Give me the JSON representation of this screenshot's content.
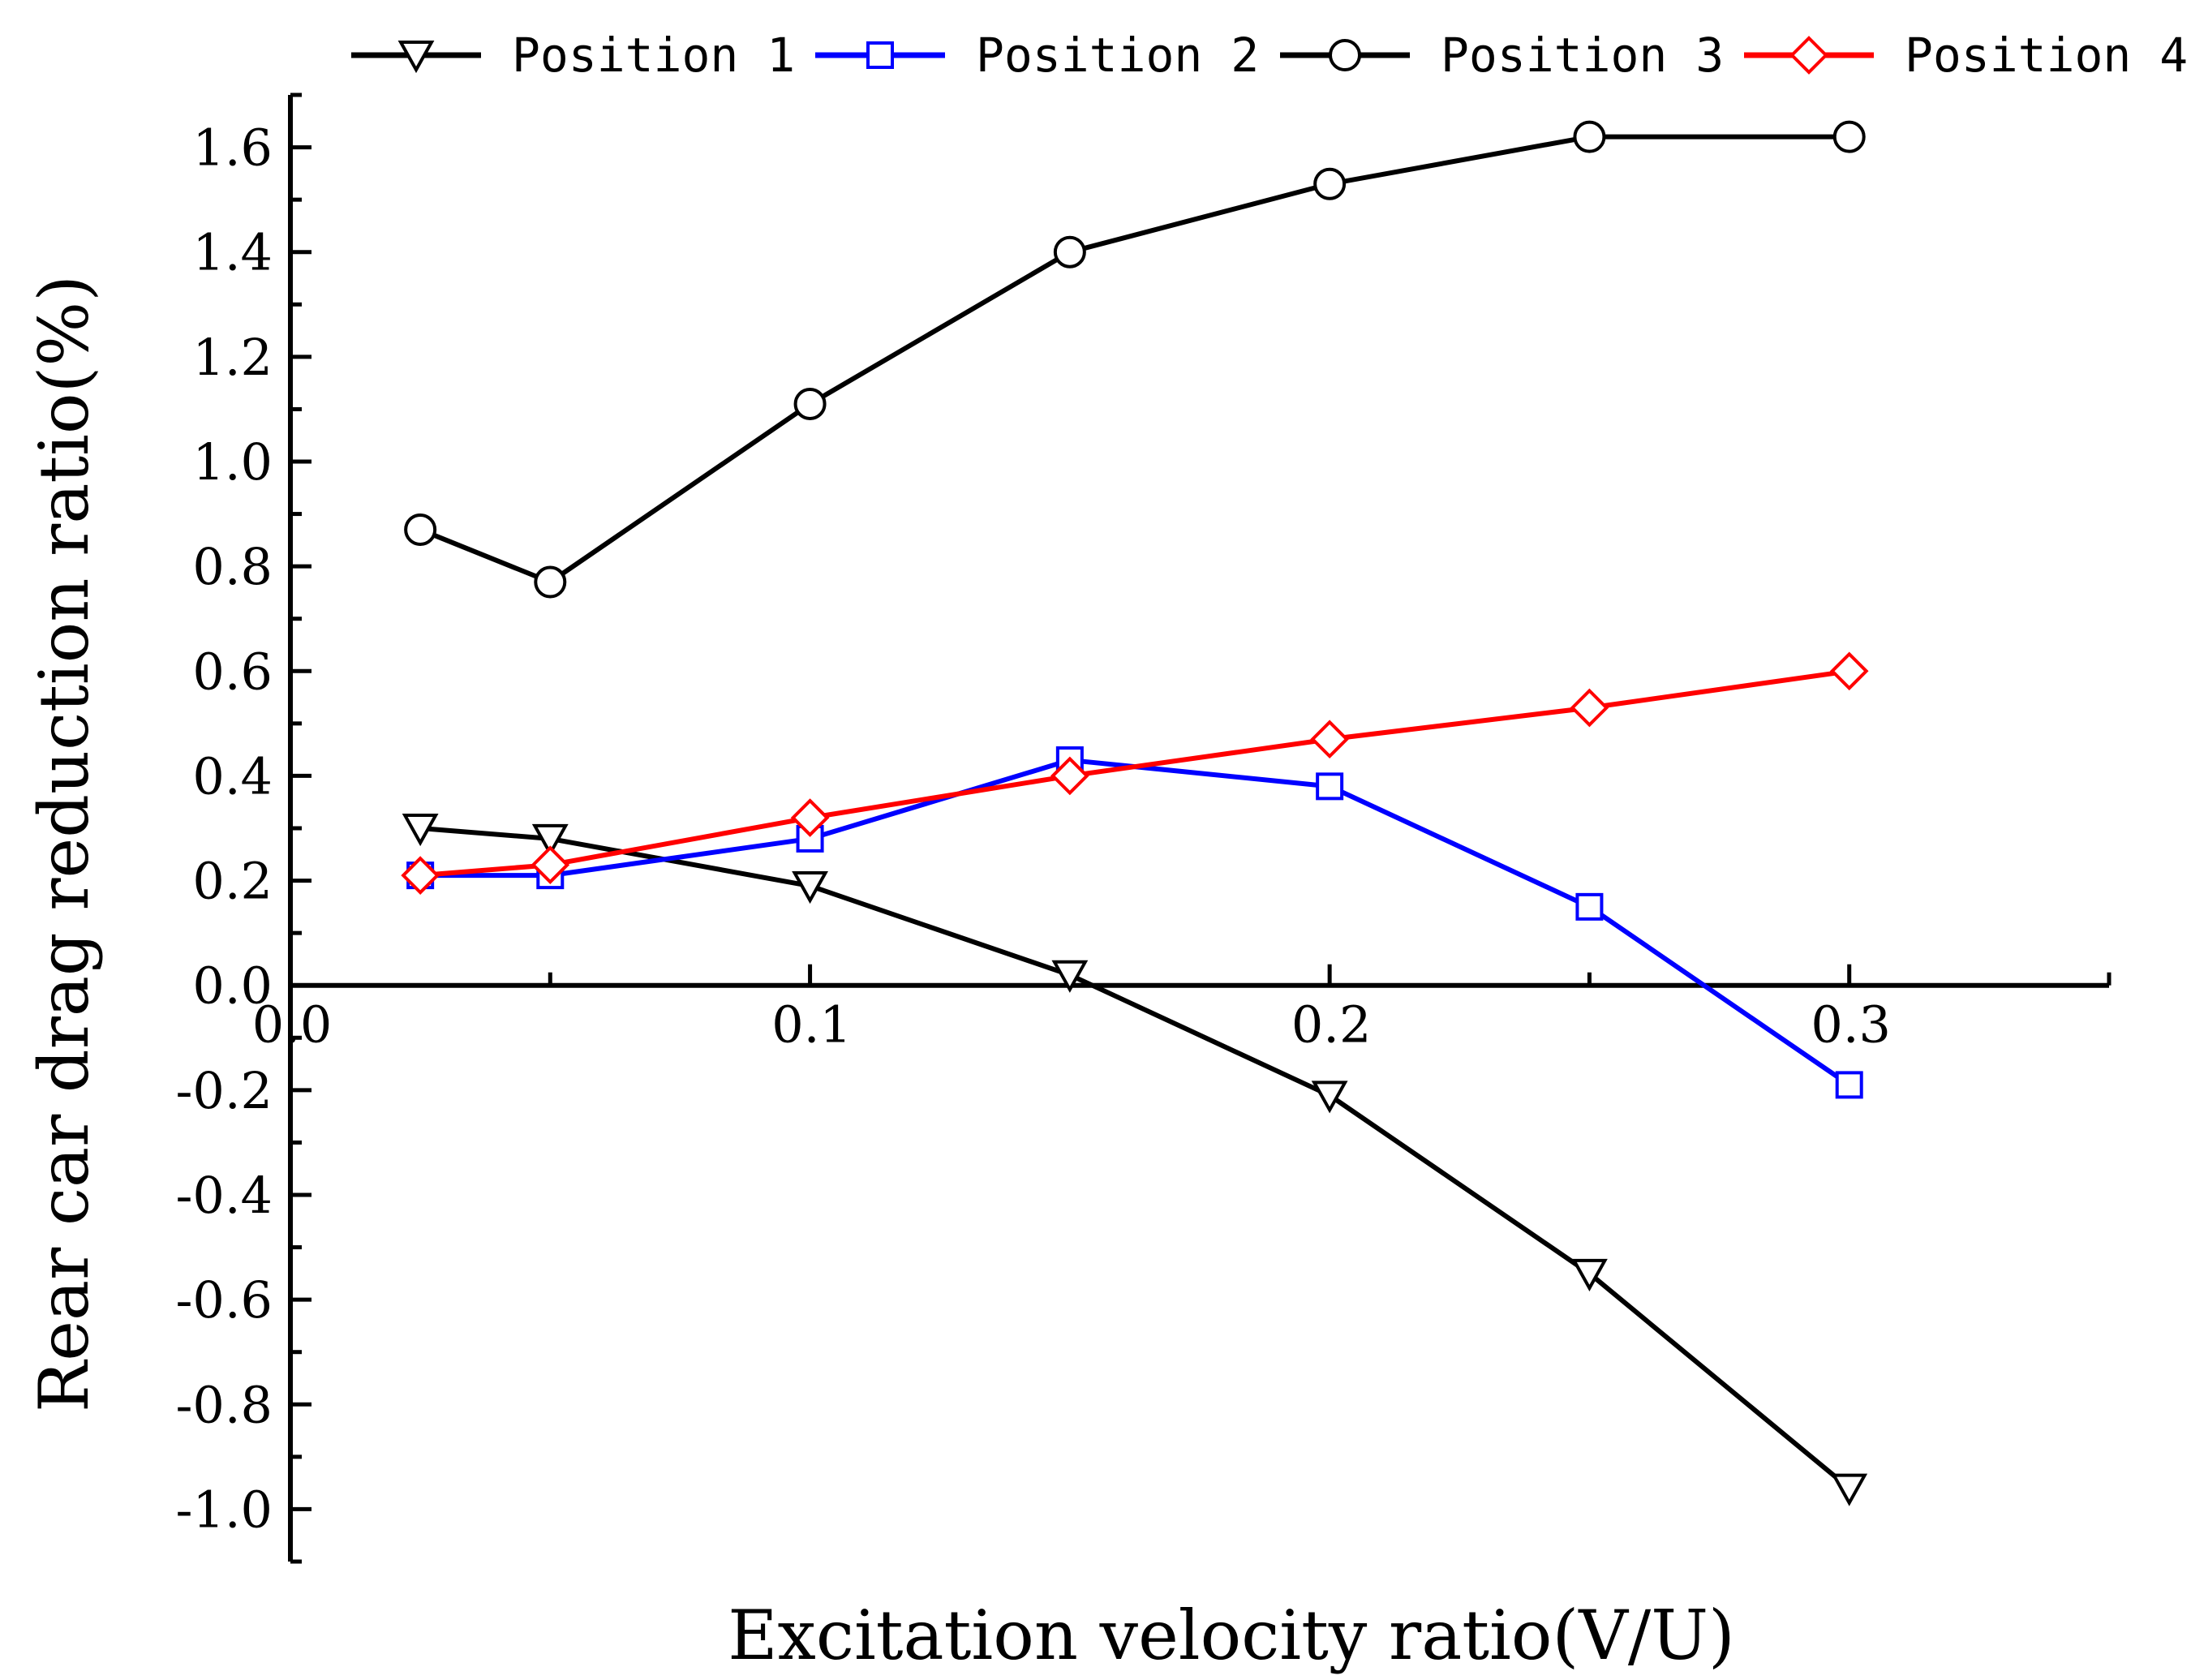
{
  "chart_data": {
    "type": "line",
    "title": "",
    "xlabel": "Excitation velocity ratio(V/U)",
    "ylabel": "Rear car drag reduction ratio(%)",
    "xlim": [
      0.0,
      0.35
    ],
    "ylim": [
      -1.1,
      1.7
    ],
    "x_ticks": [
      0.0,
      0.1,
      0.2,
      0.3
    ],
    "x_tick_labels": [
      "0.0",
      "0.1",
      "0.2",
      "0.3"
    ],
    "y_ticks": [
      1.6,
      1.4,
      1.2,
      1.0,
      0.8,
      0.6,
      0.4,
      0.2,
      0.0,
      -0.2,
      -0.4,
      -0.6,
      -0.8,
      -1.0
    ],
    "y_tick_labels": [
      "1.6",
      "1.4",
      "1.2",
      "1.0",
      "0.8",
      "0.6",
      "0.4",
      "0.2",
      "0.0",
      "-0.2",
      "-0.4",
      "-0.6",
      "-0.8",
      "-1.0"
    ],
    "legend_position": "top",
    "grid": false,
    "series": [
      {
        "name": "Position 1",
        "color": "#000000",
        "marker": "triangle-down",
        "x": [
          0.025,
          0.05,
          0.1,
          0.15,
          0.2,
          0.25,
          0.3
        ],
        "y": [
          0.3,
          0.28,
          0.19,
          0.02,
          -0.21,
          -0.55,
          -0.96
        ]
      },
      {
        "name": "Position 2",
        "color": "#0000ff",
        "marker": "square",
        "x": [
          0.025,
          0.05,
          0.1,
          0.15,
          0.2,
          0.25,
          0.3
        ],
        "y": [
          0.21,
          0.21,
          0.28,
          0.43,
          0.38,
          0.15,
          -0.19
        ]
      },
      {
        "name": "Position 3",
        "color": "#000000",
        "marker": "circle",
        "x": [
          0.025,
          0.05,
          0.1,
          0.15,
          0.2,
          0.25,
          0.3
        ],
        "y": [
          0.87,
          0.77,
          1.11,
          1.4,
          1.53,
          1.62,
          1.62
        ]
      },
      {
        "name": "Position 4",
        "color": "#ff0000",
        "marker": "diamond",
        "x": [
          0.025,
          0.05,
          0.1,
          0.15,
          0.2,
          0.25,
          0.3
        ],
        "y": [
          0.21,
          0.23,
          0.32,
          0.4,
          0.47,
          0.53,
          0.6
        ]
      }
    ]
  }
}
